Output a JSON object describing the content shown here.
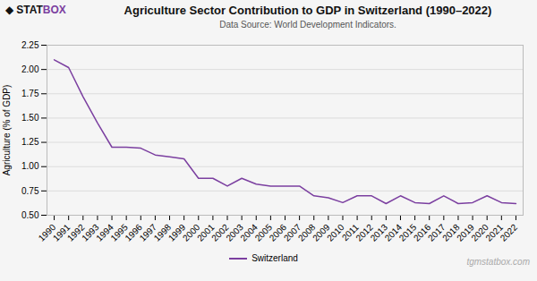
{
  "chart_data": {
    "type": "line",
    "title": "Agriculture Sector Contribution to GDP in Switzerland (1990–2022)",
    "subtitle": "Data Source: World Development Indicators.",
    "ylabel": "Agriculture (% of GDP)",
    "x": [
      1990,
      1991,
      1992,
      1993,
      1994,
      1995,
      1996,
      1997,
      1998,
      1999,
      2000,
      2001,
      2002,
      2003,
      2004,
      2005,
      2006,
      2007,
      2008,
      2009,
      2010,
      2011,
      2012,
      2013,
      2014,
      2015,
      2016,
      2017,
      2018,
      2019,
      2020,
      2021,
      2022
    ],
    "series": [
      {
        "name": "Switzerland",
        "color": "#7B3FA0",
        "values": [
          2.1,
          2.02,
          1.72,
          1.45,
          1.2,
          1.2,
          1.19,
          1.12,
          1.1,
          1.08,
          0.88,
          0.88,
          0.8,
          0.88,
          0.82,
          0.8,
          0.8,
          0.8,
          0.7,
          0.68,
          0.63,
          0.7,
          0.7,
          0.62,
          0.7,
          0.63,
          0.62,
          0.7,
          0.62,
          0.63,
          0.7,
          0.63,
          0.62
        ]
      }
    ],
    "xlim": [
      1989.5,
      2022.5
    ],
    "xticks": [
      1990,
      1991,
      1992,
      1993,
      1994,
      1995,
      1996,
      1997,
      1998,
      1999,
      2000,
      2001,
      2002,
      2003,
      2004,
      2005,
      2006,
      2007,
      2008,
      2009,
      2010,
      2011,
      2012,
      2013,
      2014,
      2015,
      2016,
      2017,
      2018,
      2019,
      2020,
      2021,
      2022
    ],
    "ylim": [
      0.5,
      2.25
    ],
    "yticks": [
      {
        "value": 0.5,
        "label": "0.50"
      },
      0.75,
      {
        "value": 1.0,
        "label": "1.00"
      },
      1.25,
      {
        "value": 1.5,
        "label": "1.50"
      },
      1.75,
      {
        "value": 2.0,
        "label": "2.00"
      },
      2.25
    ],
    "grid": true,
    "legend": "bottom",
    "annotations": [
      {
        "text": "◆",
        "color": "#111111"
      },
      {
        "text": "STAT",
        "color": "#111111"
      },
      {
        "text": "BOX",
        "color": "#7B3FA0"
      },
      {
        "text": "tgmstatbox.com",
        "color": "#aaaaaa"
      }
    ]
  }
}
